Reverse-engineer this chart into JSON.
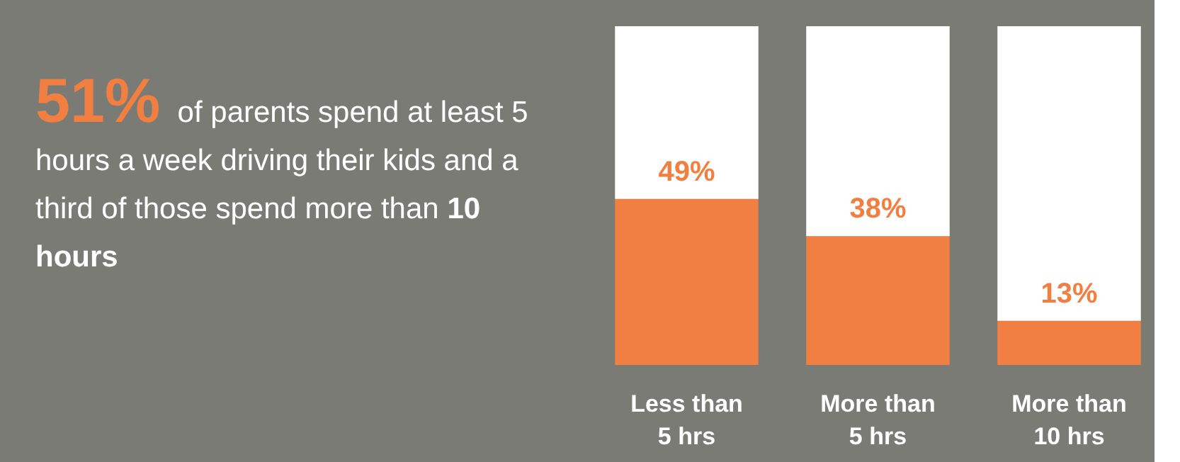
{
  "chart_data": {
    "type": "bar",
    "title": "51% of parents spend at least 5 hours a week driving their kids and a third of those spend more than 10 hours",
    "categories": [
      "Less than\n5 hrs",
      "More than\n5 hrs",
      "More than\n10 hrs"
    ],
    "stacked": true,
    "ylim": [
      0,
      100
    ],
    "tick_labels": "x",
    "grid": false,
    "series": [
      {
        "color": "#f07f41",
        "values": [
          49,
          38,
          13
        ],
        "value_labels": [
          "49%",
          "38%",
          "13%"
        ]
      },
      {
        "color": "#ffffff",
        "values": [
          51,
          62,
          87
        ]
      }
    ]
  }
}
